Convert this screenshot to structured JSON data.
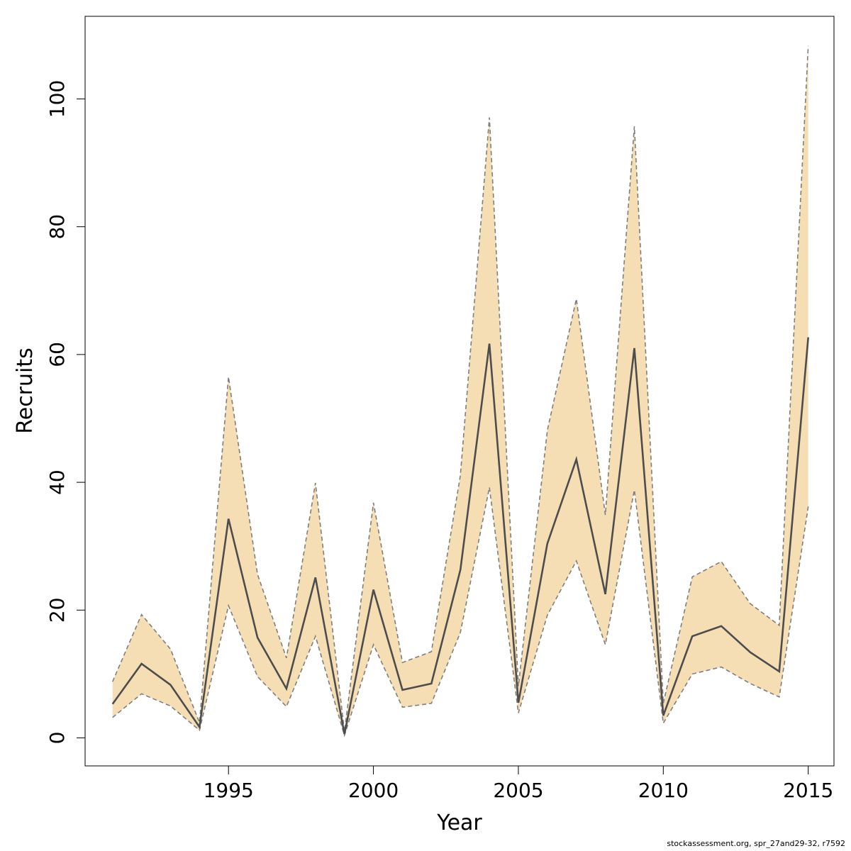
{
  "chart_data": {
    "type": "line",
    "xlabel": "Year",
    "ylabel": "Recruits",
    "xlim": [
      1991,
      2015
    ],
    "ylim": [
      0,
      110
    ],
    "x_ticks": [
      1995,
      2000,
      2005,
      2010,
      2015
    ],
    "y_ticks": [
      0,
      20,
      40,
      60,
      80,
      100
    ],
    "grid": false,
    "x": [
      1991,
      1992,
      1993,
      1994,
      1995,
      1996,
      1997,
      1998,
      1999,
      2000,
      2001,
      2002,
      2003,
      2004,
      2005,
      2006,
      2007,
      2008,
      2009,
      2010,
      2011,
      2012,
      2013,
      2014,
      2015
    ],
    "series": [
      {
        "values": [
          5.3,
          11.6,
          8.3,
          1.7,
          34.3,
          15.7,
          7.7,
          25.1,
          0.6,
          23.2,
          7.5,
          8.5,
          26.3,
          61.7,
          5.5,
          30.4,
          43.6,
          22.5,
          61.0,
          3.5,
          15.9,
          17.5,
          13.4,
          10.4,
          62.7
        ]
      },
      {
        "values": [
          3.2,
          6.9,
          5.0,
          1.2,
          20.7,
          9.6,
          4.9,
          15.9,
          0.4,
          14.6,
          4.8,
          5.4,
          16.5,
          39.2,
          3.9,
          19.2,
          27.7,
          14.6,
          38.8,
          2.3,
          10.0,
          11.1,
          8.5,
          6.4,
          36.2
        ]
      },
      {
        "values": [
          8.8,
          19.3,
          13.9,
          2.4,
          56.5,
          25.6,
          12.5,
          39.9,
          1.0,
          36.8,
          11.8,
          13.5,
          41.1,
          97.1,
          8.1,
          48.1,
          68.7,
          34.9,
          95.7,
          5.4,
          25.2,
          27.6,
          21.0,
          17.6,
          108.3
        ]
      }
    ],
    "colors": {
      "band": "#F5DEB3",
      "line": "#4D4D4D",
      "bound": "#7F7F7F"
    }
  },
  "footer": "stockassessment.org, spr_27and29-32, r7592"
}
